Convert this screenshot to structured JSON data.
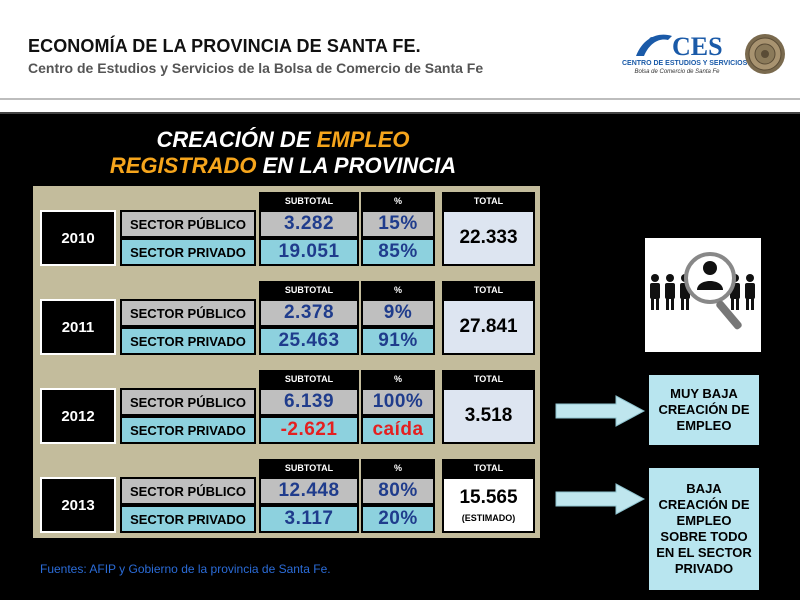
{
  "header": {
    "title": "ECONOMÍA DE LA PROVINCIA DE SANTA FE.",
    "subtitle": "Centro de Estudios y Servicios de la Bolsa de Comercio de Santa Fe",
    "logo_line1": "CENTRO DE ESTUDIOS Y SERVICIOS",
    "logo_line2": "Bolsa de Comercio de Santa Fe"
  },
  "slide": {
    "title_line1_a": "CREACIÓN DE ",
    "title_line1_b": "EMPLEO",
    "title_line2_a": "REGISTRADO",
    "title_line2_b": " EN LA PROVINCIA",
    "col_subtotal": "SUBTOTAL",
    "col_pct": "%",
    "col_total": "TOTAL",
    "label_public": "SECTOR PÚBLICO",
    "label_private": "SECTOR PRIVADO",
    "years": [
      {
        "year": "2010",
        "public_sub": "3.282",
        "public_pct": "15%",
        "private_sub": "19.051",
        "private_pct": "85%",
        "total": "22.333",
        "total_note": ""
      },
      {
        "year": "2011",
        "public_sub": "2.378",
        "public_pct": "9%",
        "private_sub": "25.463",
        "private_pct": "91%",
        "total": "27.841",
        "total_note": ""
      },
      {
        "year": "2012",
        "public_sub": "6.139",
        "public_pct": "100%",
        "private_sub": "-2.621",
        "private_pct": "caída",
        "total": "3.518",
        "total_note": ""
      },
      {
        "year": "2013",
        "public_sub": "12.448",
        "public_pct": "80%",
        "private_sub": "3.117",
        "private_pct": "20%",
        "total": "15.565",
        "total_note": "(ESTIMADO)"
      }
    ],
    "note1": "MUY BAJA CREACIÓN DE EMPLEO",
    "note2": "BAJA CREACIÓN DE EMPLEO SOBRE TODO EN EL SECTOR PRIVADO",
    "source": "Fuentes: AFIP y Gobierno de la provincia de Santa Fe.",
    "colors": {
      "accent": "#f6a51c",
      "value_blue": "#1f3c8c",
      "negative": "#e42020",
      "public_bg": "#bfbfbf",
      "private_bg": "#8dd1de",
      "total_bg": "#dde5f1",
      "frame": "#c3bc9c"
    },
    "icons": [
      "people-search-icon",
      "right-arrow-icon",
      "seal-icon",
      "ces-logo-icon"
    ]
  }
}
